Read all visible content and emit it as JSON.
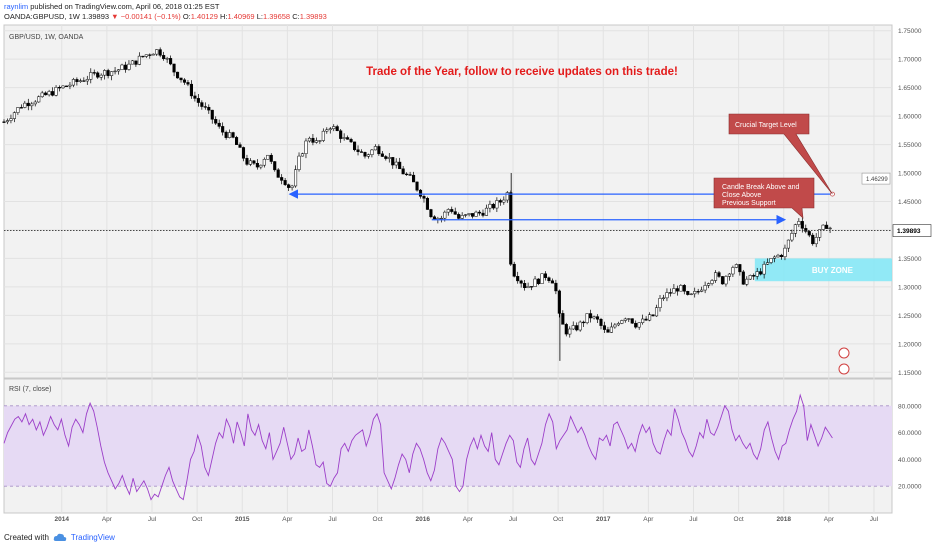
{
  "header": {
    "author": "raynlim",
    "published_text": "published on TradingView.com, April 06, 2018 01:25 EST",
    "symbol": "OANDA:GBPUSD, 1W",
    "last": "1.39893",
    "change": "−0.00141 (−0.1%)",
    "open_label": "O:",
    "open": "1.40129",
    "high_label": "H:",
    "high": "1.40969",
    "low_label": "L:",
    "low": "1.39658",
    "close_label": "C:",
    "close": "1.39893"
  },
  "footer": {
    "created_with": "Created with",
    "brand": "TradingView"
  },
  "colors": {
    "title_red": "#e31b1b",
    "trend_line": "#2962ff",
    "buy_zone": "#80e7f7",
    "callout": "#c14a4a",
    "rsi_line": "#9c3fc9",
    "rsi_band": "#e6daf4"
  },
  "chart_data": [
    {
      "type": "candlestick",
      "legend": "GBP/USD, 1W, OANDA",
      "title": "Trade of the Year, follow to receive updates on this trade!",
      "ylim": [
        1.14,
        1.76
      ],
      "y_ticks": [
        "1.75000",
        "1.70000",
        "1.65000",
        "1.60000",
        "1.55000",
        "1.50000",
        "1.45000",
        "1.40000",
        "1.35000",
        "1.30000",
        "1.25000",
        "1.20000",
        "1.15000"
      ],
      "y_tick_values": [
        1.75,
        1.7,
        1.65,
        1.6,
        1.55,
        1.5,
        1.45,
        1.4,
        1.35,
        1.3,
        1.25,
        1.2,
        1.15
      ],
      "x_ticks": [
        "2014",
        "Apr",
        "Jul",
        "Oct",
        "2015",
        "Apr",
        "Jul",
        "Oct",
        "2016",
        "Apr",
        "Jul",
        "Oct",
        "2017",
        "Apr",
        "Jul",
        "Oct",
        "2018",
        "Apr",
        "Jul"
      ],
      "x_tick_values": [
        2014.0,
        2014.25,
        2014.5,
        2014.75,
        2015.0,
        2015.25,
        2015.5,
        2015.75,
        2016.0,
        2016.25,
        2016.5,
        2016.75,
        2017.0,
        2017.25,
        2017.5,
        2017.75,
        2018.0,
        2018.25,
        2018.5
      ],
      "xlim": [
        2013.68,
        2018.6
      ],
      "series_points": [
        [
          2013.68,
          1.59
        ],
        [
          2013.78,
          1.62
        ],
        [
          2013.9,
          1.635
        ],
        [
          2014.0,
          1.65
        ],
        [
          2014.12,
          1.665
        ],
        [
          2014.2,
          1.675
        ],
        [
          2014.3,
          1.68
        ],
        [
          2014.38,
          1.69
        ],
        [
          2014.45,
          1.705
        ],
        [
          2014.52,
          1.716
        ],
        [
          2014.56,
          1.71
        ],
        [
          2014.62,
          1.68
        ],
        [
          2014.68,
          1.66
        ],
        [
          2014.74,
          1.63
        ],
        [
          2014.8,
          1.61
        ],
        [
          2014.88,
          1.575
        ],
        [
          2014.95,
          1.56
        ],
        [
          2015.02,
          1.52
        ],
        [
          2015.08,
          1.51
        ],
        [
          2015.14,
          1.535
        ],
        [
          2015.18,
          1.5
        ],
        [
          2015.23,
          1.49
        ],
        [
          2015.27,
          1.47
        ],
        [
          2015.32,
          1.53
        ],
        [
          2015.37,
          1.565
        ],
        [
          2015.42,
          1.55
        ],
        [
          2015.48,
          1.585
        ],
        [
          2015.52,
          1.575
        ],
        [
          2015.56,
          1.56
        ],
        [
          2015.62,
          1.545
        ],
        [
          2015.68,
          1.53
        ],
        [
          2015.74,
          1.545
        ],
        [
          2015.8,
          1.53
        ],
        [
          2015.86,
          1.51
        ],
        [
          2015.93,
          1.49
        ],
        [
          2016.0,
          1.46
        ],
        [
          2016.05,
          1.425
        ],
        [
          2016.1,
          1.42
        ],
        [
          2016.15,
          1.44
        ],
        [
          2016.2,
          1.42
        ],
        [
          2016.25,
          1.425
        ],
        [
          2016.32,
          1.43
        ],
        [
          2016.38,
          1.44
        ],
        [
          2016.43,
          1.45
        ],
        [
          2016.47,
          1.465
        ],
        [
          2016.49,
          1.33
        ],
        [
          2016.52,
          1.32
        ],
        [
          2016.57,
          1.3
        ],
        [
          2016.63,
          1.31
        ],
        [
          2016.68,
          1.32
        ],
        [
          2016.73,
          1.31
        ],
        [
          2016.76,
          1.24
        ],
        [
          2016.8,
          1.22
        ],
        [
          2016.86,
          1.23
        ],
        [
          2016.92,
          1.25
        ],
        [
          2016.97,
          1.24
        ],
        [
          2017.02,
          1.215
        ],
        [
          2017.08,
          1.24
        ],
        [
          2017.13,
          1.25
        ],
        [
          2017.18,
          1.235
        ],
        [
          2017.23,
          1.24
        ],
        [
          2017.28,
          1.25
        ],
        [
          2017.32,
          1.28
        ],
        [
          2017.37,
          1.29
        ],
        [
          2017.42,
          1.3
        ],
        [
          2017.47,
          1.28
        ],
        [
          2017.52,
          1.29
        ],
        [
          2017.57,
          1.31
        ],
        [
          2017.62,
          1.32
        ],
        [
          2017.66,
          1.31
        ],
        [
          2017.7,
          1.33
        ],
        [
          2017.73,
          1.34
        ],
        [
          2017.77,
          1.31
        ],
        [
          2017.82,
          1.315
        ],
        [
          2017.88,
          1.33
        ],
        [
          2017.94,
          1.35
        ],
        [
          2018.0,
          1.36
        ],
        [
          2018.04,
          1.39
        ],
        [
          2018.08,
          1.42
        ],
        [
          2018.12,
          1.4
        ],
        [
          2018.16,
          1.38
        ],
        [
          2018.2,
          1.395
        ],
        [
          2018.24,
          1.41
        ],
        [
          2018.27,
          1.399
        ]
      ],
      "last_price": 1.39893,
      "last_price_label": "1.39893",
      "target_price": 1.46299,
      "target_price_label": "1.46299",
      "lines": [
        {
          "from": [
            2015.27,
            1.463
          ],
          "to": [
            2018.27,
            1.463
          ],
          "arrow": "left"
        },
        {
          "from": [
            2016.05,
            1.418
          ],
          "to": [
            2018.0,
            1.418
          ],
          "arrow": "right"
        }
      ],
      "buy_zone": {
        "label": "BUY ZONE",
        "x0": 2017.84,
        "x1": 2018.6,
        "y0": 1.31,
        "y1": 1.35
      },
      "annotations": [
        {
          "text": "Crucial Target Level"
        },
        {
          "text": "Candle Break Above and Close Above Previous Support"
        }
      ]
    },
    {
      "type": "line",
      "legend": "RSI (7, close)",
      "ylim": [
        0,
        100
      ],
      "y_ticks": [
        "80.0000",
        "60.0000",
        "40.0000",
        "20.0000"
      ],
      "y_tick_values": [
        80,
        60,
        40,
        20
      ],
      "band": [
        20,
        80
      ],
      "values": [
        52,
        60,
        65,
        70,
        72,
        68,
        74,
        66,
        70,
        62,
        68,
        58,
        64,
        72,
        66,
        62,
        70,
        58,
        50,
        64,
        70,
        66,
        60,
        74,
        82,
        76,
        64,
        50,
        38,
        30,
        24,
        18,
        22,
        28,
        20,
        14,
        26,
        16,
        20,
        24,
        18,
        10,
        14,
        12,
        20,
        28,
        34,
        24,
        18,
        12,
        10,
        24,
        40,
        46,
        58,
        50,
        34,
        28,
        40,
        52,
        60,
        56,
        70,
        64,
        52,
        68,
        60,
        50,
        74,
        62,
        58,
        66,
        54,
        48,
        60,
        40,
        46,
        52,
        64,
        52,
        40,
        44,
        56,
        46,
        48,
        62,
        50,
        36,
        34,
        38,
        22,
        20,
        26,
        30,
        48,
        52,
        46,
        54,
        58,
        60,
        62,
        50,
        58,
        70,
        74,
        66,
        30,
        24,
        18,
        26,
        36,
        44,
        40,
        30,
        44,
        52,
        48,
        40,
        30,
        24,
        32,
        48,
        56,
        52,
        46,
        40,
        20,
        16,
        20,
        40,
        50,
        56,
        48,
        58,
        50,
        46,
        60,
        40,
        36,
        44,
        52,
        58,
        54,
        38,
        34,
        48,
        56,
        40,
        36,
        44,
        52,
        66,
        74,
        68,
        48,
        54,
        58,
        62,
        72,
        66,
        60,
        64,
        58,
        50,
        44,
        40,
        56,
        54,
        58,
        50,
        66,
        68,
        62,
        56,
        48,
        52,
        46,
        58,
        66,
        60,
        64,
        52,
        46,
        44,
        54,
        62,
        58,
        78,
        70,
        60,
        54,
        46,
        42,
        50,
        60,
        56,
        70,
        60,
        58,
        64,
        72,
        80,
        76,
        62,
        54,
        58,
        52,
        48,
        52,
        44,
        40,
        48,
        62,
        68,
        56,
        46,
        40,
        50,
        52,
        62,
        70,
        76,
        88,
        80,
        54,
        66,
        58,
        50,
        56,
        64,
        60,
        56
      ]
    }
  ]
}
